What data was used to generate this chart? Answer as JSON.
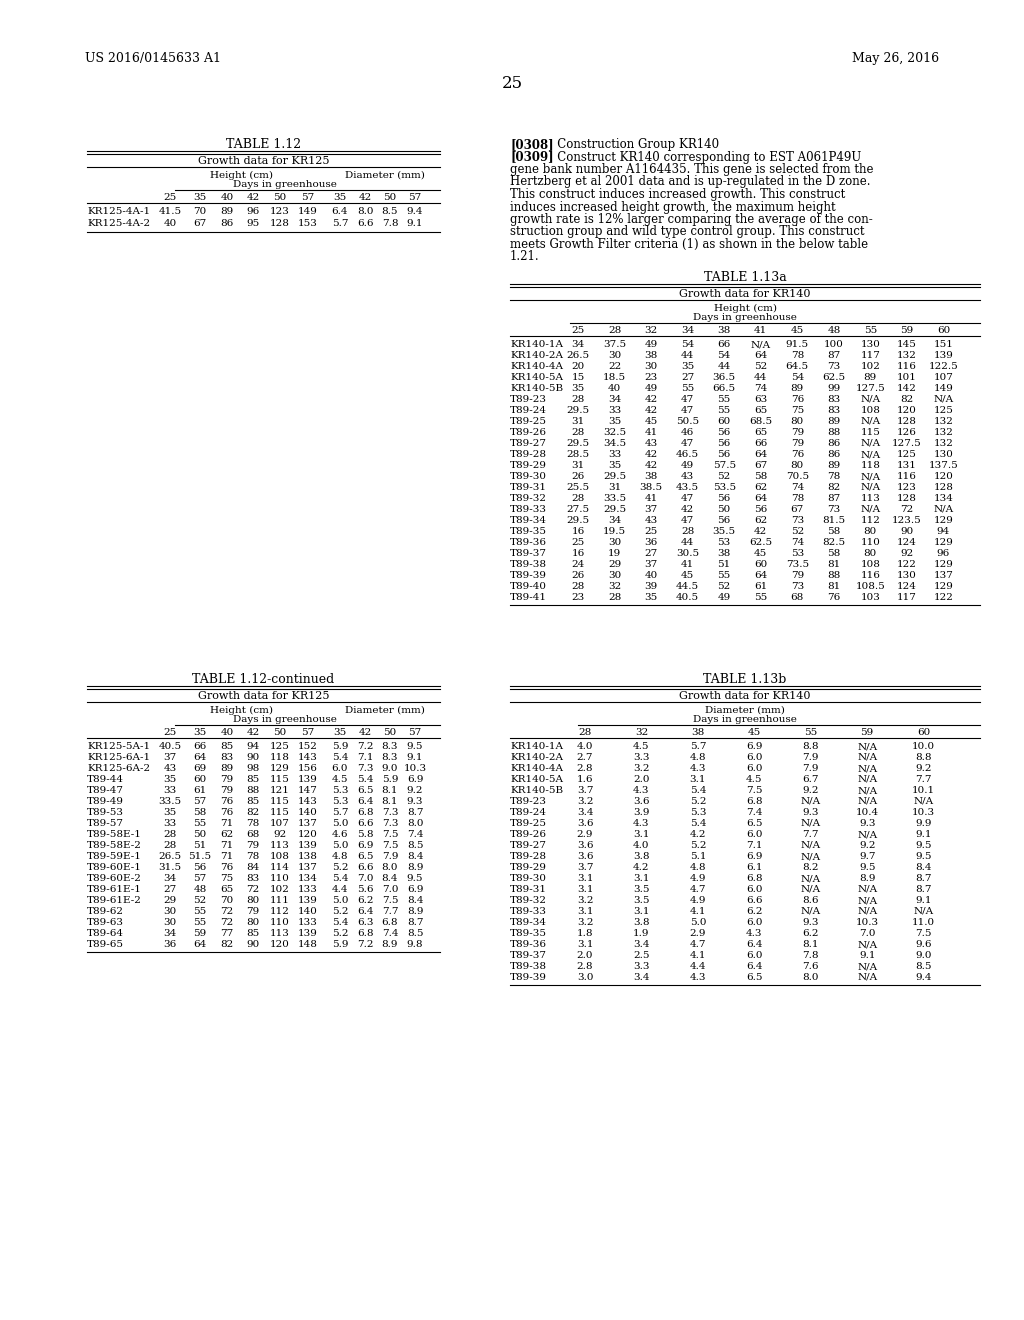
{
  "page_number": "25",
  "left_header": "US 2016/0145633 A1",
  "right_header": "May 26, 2016",
  "table112_title": "TABLE 1.12",
  "table112_subtitle": "Growth data for KR125",
  "table112_days_height": [
    "25",
    "35",
    "40",
    "42",
    "50",
    "57"
  ],
  "table112_days_diam": [
    "35",
    "42",
    "50",
    "57"
  ],
  "table112_rows": [
    [
      "KR125-4A-1",
      "41.5",
      "70",
      "89",
      "96",
      "123",
      "149",
      "6.4",
      "8.0",
      "8.5",
      "9.4"
    ],
    [
      "KR125-4A-2",
      "40",
      "67",
      "86",
      "95",
      "128",
      "153",
      "5.7",
      "6.6",
      "7.8",
      "9.1"
    ]
  ],
  "text_block_lines": [
    {
      "tag": "[0308]",
      "rest": "   Construction Group KR140"
    },
    {
      "tag": "[0309]",
      "rest": "   Construct KR140 corresponding to EST A061P49U"
    },
    {
      "tag": "",
      "rest": "gene bank number A1164435. This gene is selected from the"
    },
    {
      "tag": "",
      "rest": "Hertzberg et al 2001 data and is up-regulated in the D zone."
    },
    {
      "tag": "",
      "rest": "This construct induces increased growth. This construct"
    },
    {
      "tag": "",
      "rest": "induces increased height growth, the maximum height"
    },
    {
      "tag": "",
      "rest": "growth rate is 12% larger comparing the average of the con-"
    },
    {
      "tag": "",
      "rest": "struction group and wild type control group. This construct"
    },
    {
      "tag": "",
      "rest": "meets Growth Filter criteria (1) as shown in the below table"
    },
    {
      "tag": "",
      "rest": "1.21."
    }
  ],
  "table113a_title": "TABLE 1.13a",
  "table113a_subtitle": "Growth data for KR140",
  "table113a_days": [
    "25",
    "28",
    "32",
    "34",
    "38",
    "41",
    "45",
    "48",
    "55",
    "59",
    "60"
  ],
  "table113a_rows": [
    [
      "KR140-1A",
      "34",
      "37.5",
      "49",
      "54",
      "66",
      "N/A",
      "91.5",
      "100",
      "130",
      "145",
      "151"
    ],
    [
      "KR140-2A",
      "26.5",
      "30",
      "38",
      "44",
      "54",
      "64",
      "78",
      "87",
      "117",
      "132",
      "139"
    ],
    [
      "KR140-4A",
      "20",
      "22",
      "30",
      "35",
      "44",
      "52",
      "64.5",
      "73",
      "102",
      "116",
      "122.5"
    ],
    [
      "KR140-5A",
      "15",
      "18.5",
      "23",
      "27",
      "36.5",
      "44",
      "54",
      "62.5",
      "89",
      "101",
      "107"
    ],
    [
      "KR140-5B",
      "35",
      "40",
      "49",
      "55",
      "66.5",
      "74",
      "89",
      "99",
      "127.5",
      "142",
      "149"
    ],
    [
      "T89-23",
      "28",
      "34",
      "42",
      "47",
      "55",
      "63",
      "76",
      "83",
      "N/A",
      "82",
      "N/A"
    ],
    [
      "T89-24",
      "29.5",
      "33",
      "42",
      "47",
      "55",
      "65",
      "75",
      "83",
      "108",
      "120",
      "125"
    ],
    [
      "T89-25",
      "31",
      "35",
      "45",
      "50.5",
      "60",
      "68.5",
      "80",
      "89",
      "N/A",
      "128",
      "132"
    ],
    [
      "T89-26",
      "28",
      "32.5",
      "41",
      "46",
      "56",
      "65",
      "79",
      "88",
      "115",
      "126",
      "132"
    ],
    [
      "T89-27",
      "29.5",
      "34.5",
      "43",
      "47",
      "56",
      "66",
      "79",
      "86",
      "N/A",
      "127.5",
      "132"
    ],
    [
      "T89-28",
      "28.5",
      "33",
      "42",
      "46.5",
      "56",
      "64",
      "76",
      "86",
      "N/A",
      "125",
      "130"
    ],
    [
      "T89-29",
      "31",
      "35",
      "42",
      "49",
      "57.5",
      "67",
      "80",
      "89",
      "118",
      "131",
      "137.5"
    ],
    [
      "T89-30",
      "26",
      "29.5",
      "38",
      "43",
      "52",
      "58",
      "70.5",
      "78",
      "N/A",
      "116",
      "120"
    ],
    [
      "T89-31",
      "25.5",
      "31",
      "38.5",
      "43.5",
      "53.5",
      "62",
      "74",
      "82",
      "N/A",
      "123",
      "128"
    ],
    [
      "T89-32",
      "28",
      "33.5",
      "41",
      "47",
      "56",
      "64",
      "78",
      "87",
      "113",
      "128",
      "134"
    ],
    [
      "T89-33",
      "27.5",
      "29.5",
      "37",
      "42",
      "50",
      "56",
      "67",
      "73",
      "N/A",
      "72",
      "N/A"
    ],
    [
      "T89-34",
      "29.5",
      "34",
      "43",
      "47",
      "56",
      "62",
      "73",
      "81.5",
      "112",
      "123.5",
      "129"
    ],
    [
      "T89-35",
      "16",
      "19.5",
      "25",
      "28",
      "35.5",
      "42",
      "52",
      "58",
      "80",
      "90",
      "94"
    ],
    [
      "T89-36",
      "25",
      "30",
      "36",
      "44",
      "53",
      "62.5",
      "74",
      "82.5",
      "110",
      "124",
      "129"
    ],
    [
      "T89-37",
      "16",
      "19",
      "27",
      "30.5",
      "38",
      "45",
      "53",
      "58",
      "80",
      "92",
      "96"
    ],
    [
      "T89-38",
      "24",
      "29",
      "37",
      "41",
      "51",
      "60",
      "73.5",
      "81",
      "108",
      "122",
      "129"
    ],
    [
      "T89-39",
      "26",
      "30",
      "40",
      "45",
      "55",
      "64",
      "79",
      "88",
      "116",
      "130",
      "137"
    ],
    [
      "T89-40",
      "28",
      "32",
      "39",
      "44.5",
      "52",
      "61",
      "73",
      "81",
      "108.5",
      "124",
      "129"
    ],
    [
      "T89-41",
      "23",
      "28",
      "35",
      "40.5",
      "49",
      "55",
      "68",
      "76",
      "103",
      "117",
      "122"
    ]
  ],
  "table112cont_title": "TABLE 1.12-continued",
  "table112cont_subtitle": "Growth data for KR125",
  "table112cont_rows": [
    [
      "KR125-5A-1",
      "40.5",
      "66",
      "85",
      "94",
      "125",
      "152",
      "5.9",
      "7.2",
      "8.3",
      "9.5"
    ],
    [
      "KR125-6A-1",
      "37",
      "64",
      "83",
      "90",
      "118",
      "143",
      "5.4",
      "7.1",
      "8.3",
      "9.1"
    ],
    [
      "KR125-6A-2",
      "43",
      "69",
      "89",
      "98",
      "129",
      "156",
      "6.0",
      "7.3",
      "9.0",
      "10.3"
    ],
    [
      "T89-44",
      "35",
      "60",
      "79",
      "85",
      "115",
      "139",
      "4.5",
      "5.4",
      "5.9",
      "6.9"
    ],
    [
      "T89-47",
      "33",
      "61",
      "79",
      "88",
      "121",
      "147",
      "5.3",
      "6.5",
      "8.1",
      "9.2"
    ],
    [
      "T89-49",
      "33.5",
      "57",
      "76",
      "85",
      "115",
      "143",
      "5.3",
      "6.4",
      "8.1",
      "9.3"
    ],
    [
      "T89-53",
      "35",
      "58",
      "76",
      "82",
      "115",
      "140",
      "5.7",
      "6.8",
      "7.3",
      "8.7"
    ],
    [
      "T89-57",
      "33",
      "55",
      "71",
      "78",
      "107",
      "137",
      "5.0",
      "6.6",
      "7.3",
      "8.0"
    ],
    [
      "T89-58E-1",
      "28",
      "50",
      "62",
      "68",
      "92",
      "120",
      "4.6",
      "5.8",
      "7.5",
      "7.4"
    ],
    [
      "T89-58E-2",
      "28",
      "51",
      "71",
      "79",
      "113",
      "139",
      "5.0",
      "6.9",
      "7.5",
      "8.5"
    ],
    [
      "T89-59E-1",
      "26.5",
      "51.5",
      "71",
      "78",
      "108",
      "138",
      "4.8",
      "6.5",
      "7.9",
      "8.4"
    ],
    [
      "T89-60E-1",
      "31.5",
      "56",
      "76",
      "84",
      "114",
      "137",
      "5.2",
      "6.6",
      "8.0",
      "8.9"
    ],
    [
      "T89-60E-2",
      "34",
      "57",
      "75",
      "83",
      "110",
      "134",
      "5.4",
      "7.0",
      "8.4",
      "9.5"
    ],
    [
      "T89-61E-1",
      "27",
      "48",
      "65",
      "72",
      "102",
      "133",
      "4.4",
      "5.6",
      "7.0",
      "6.9"
    ],
    [
      "T89-61E-2",
      "29",
      "52",
      "70",
      "80",
      "111",
      "139",
      "5.0",
      "6.2",
      "7.5",
      "8.4"
    ],
    [
      "T89-62",
      "30",
      "55",
      "72",
      "79",
      "112",
      "140",
      "5.2",
      "6.4",
      "7.7",
      "8.9"
    ],
    [
      "T89-63",
      "30",
      "55",
      "72",
      "80",
      "110",
      "133",
      "5.4",
      "6.3",
      "6.8",
      "8.7"
    ],
    [
      "T89-64",
      "34",
      "59",
      "77",
      "85",
      "113",
      "139",
      "5.2",
      "6.8",
      "7.4",
      "8.5"
    ],
    [
      "T89-65",
      "36",
      "64",
      "82",
      "90",
      "120",
      "148",
      "5.9",
      "7.2",
      "8.9",
      "9.8"
    ]
  ],
  "table113b_title": "TABLE 1.13b",
  "table113b_subtitle": "Growth data for KR140",
  "table113b_days": [
    "28",
    "32",
    "38",
    "45",
    "55",
    "59",
    "60"
  ],
  "table113b_rows": [
    [
      "KR140-1A",
      "4.0",
      "4.5",
      "5.7",
      "6.9",
      "8.8",
      "N/A",
      "10.0"
    ],
    [
      "KR140-2A",
      "2.7",
      "3.3",
      "4.8",
      "6.0",
      "7.9",
      "N/A",
      "8.8"
    ],
    [
      "KR140-4A",
      "2.8",
      "3.2",
      "4.3",
      "6.0",
      "7.9",
      "N/A",
      "9.2"
    ],
    [
      "KR140-5A",
      "1.6",
      "2.0",
      "3.1",
      "4.5",
      "6.7",
      "N/A",
      "7.7"
    ],
    [
      "KR140-5B",
      "3.7",
      "4.3",
      "5.4",
      "7.5",
      "9.2",
      "N/A",
      "10.1"
    ],
    [
      "T89-23",
      "3.2",
      "3.6",
      "5.2",
      "6.8",
      "N/A",
      "N/A",
      "N/A"
    ],
    [
      "T89-24",
      "3.4",
      "3.9",
      "5.3",
      "7.4",
      "9.3",
      "10.4",
      "10.3"
    ],
    [
      "T89-25",
      "3.6",
      "4.3",
      "5.4",
      "6.5",
      "N/A",
      "9.3",
      "9.9"
    ],
    [
      "T89-26",
      "2.9",
      "3.1",
      "4.2",
      "6.0",
      "7.7",
      "N/A",
      "9.1"
    ],
    [
      "T89-27",
      "3.6",
      "4.0",
      "5.2",
      "7.1",
      "N/A",
      "9.2",
      "9.5"
    ],
    [
      "T89-28",
      "3.6",
      "3.8",
      "5.1",
      "6.9",
      "N/A",
      "9.7",
      "9.5"
    ],
    [
      "T89-29",
      "3.7",
      "4.2",
      "4.8",
      "6.1",
      "8.2",
      "9.5",
      "8.4"
    ],
    [
      "T89-30",
      "3.1",
      "3.1",
      "4.9",
      "6.8",
      "N/A",
      "8.9",
      "8.7"
    ],
    [
      "T89-31",
      "3.1",
      "3.5",
      "4.7",
      "6.0",
      "N/A",
      "N/A",
      "8.7"
    ],
    [
      "T89-32",
      "3.2",
      "3.5",
      "4.9",
      "6.6",
      "8.6",
      "N/A",
      "9.1"
    ],
    [
      "T89-33",
      "3.1",
      "3.1",
      "4.1",
      "6.2",
      "N/A",
      "N/A",
      "N/A"
    ],
    [
      "T89-34",
      "3.2",
      "3.8",
      "5.0",
      "6.0",
      "9.3",
      "10.3",
      "11.0"
    ],
    [
      "T89-35",
      "1.8",
      "1.9",
      "2.9",
      "4.3",
      "6.2",
      "7.0",
      "7.5"
    ],
    [
      "T89-36",
      "3.1",
      "3.4",
      "4.7",
      "6.4",
      "8.1",
      "N/A",
      "9.6"
    ],
    [
      "T89-37",
      "2.0",
      "2.5",
      "4.1",
      "6.0",
      "7.8",
      "9.1",
      "9.0"
    ],
    [
      "T89-38",
      "2.8",
      "3.3",
      "4.4",
      "6.4",
      "7.6",
      "N/A",
      "8.5"
    ],
    [
      "T89-39",
      "3.0",
      "3.4",
      "4.3",
      "6.5",
      "8.0",
      "N/A",
      "9.4"
    ]
  ]
}
